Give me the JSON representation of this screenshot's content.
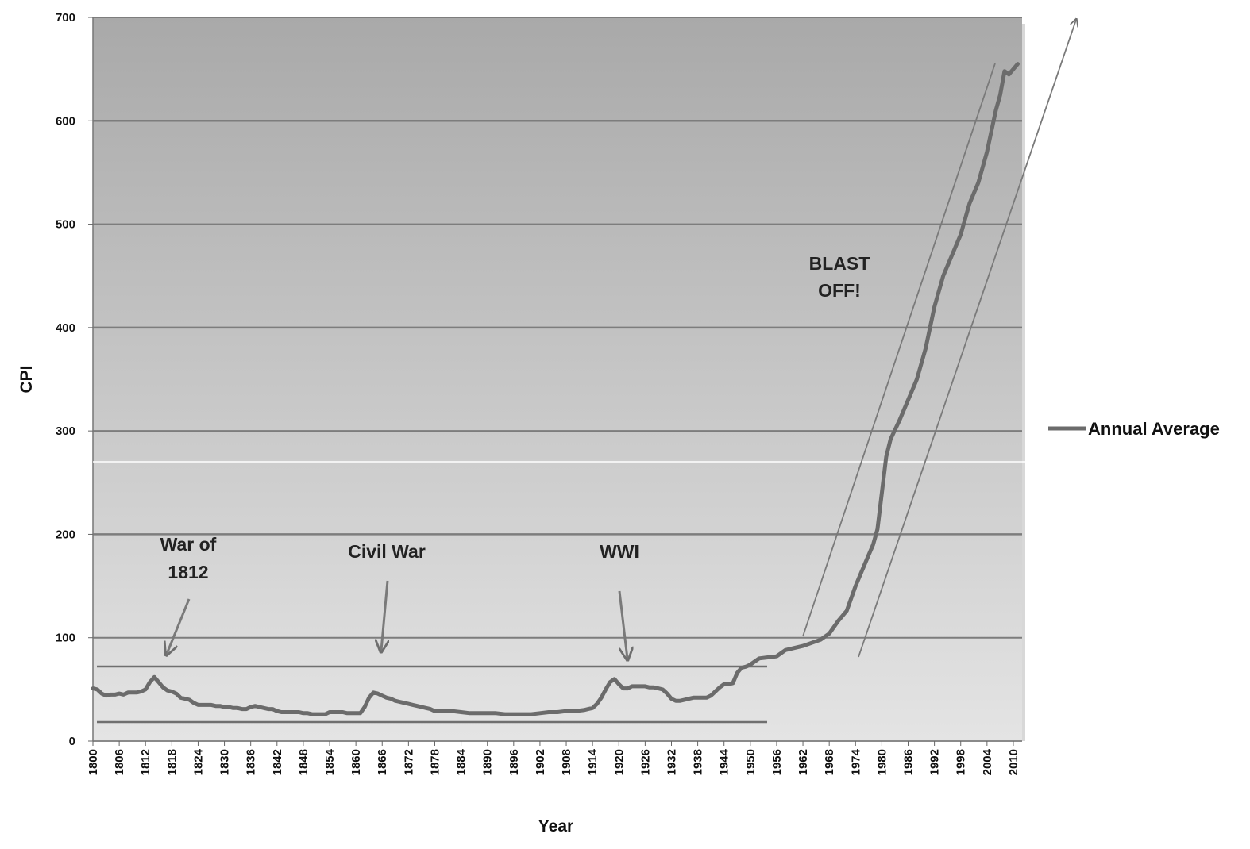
{
  "chart_data": {
    "type": "line",
    "title": "",
    "xlabel": "Year",
    "ylabel": "CPI",
    "xlim": [
      1800,
      2012
    ],
    "ylim": [
      0,
      700
    ],
    "yticks": [
      0,
      100,
      200,
      300,
      400,
      500,
      600,
      700
    ],
    "xticks": [
      1800,
      1806,
      1812,
      1818,
      1824,
      1830,
      1836,
      1842,
      1848,
      1854,
      1860,
      1866,
      1872,
      1878,
      1884,
      1890,
      1896,
      1902,
      1908,
      1914,
      1920,
      1926,
      1932,
      1938,
      1944,
      1950,
      1956,
      1962,
      1968,
      1974,
      1980,
      1986,
      1992,
      1998,
      2004,
      2010
    ],
    "grid": true,
    "legend_position": "right",
    "series": [
      {
        "name": "Annual Average",
        "color": "#6b6b6b",
        "x": [
          1800,
          1801,
          1802,
          1803,
          1804,
          1805,
          1806,
          1807,
          1808,
          1809,
          1810,
          1811,
          1812,
          1813,
          1814,
          1815,
          1816,
          1817,
          1818,
          1819,
          1820,
          1821,
          1822,
          1823,
          1824,
          1825,
          1826,
          1827,
          1828,
          1829,
          1830,
          1831,
          1832,
          1833,
          1834,
          1835,
          1836,
          1837,
          1838,
          1839,
          1840,
          1841,
          1842,
          1843,
          1844,
          1845,
          1846,
          1847,
          1848,
          1849,
          1850,
          1851,
          1852,
          1853,
          1854,
          1855,
          1856,
          1857,
          1858,
          1859,
          1860,
          1861,
          1862,
          1863,
          1864,
          1865,
          1866,
          1867,
          1868,
          1869,
          1870,
          1871,
          1872,
          1873,
          1874,
          1875,
          1876,
          1877,
          1878,
          1879,
          1880,
          1882,
          1884,
          1886,
          1888,
          1890,
          1892,
          1894,
          1896,
          1898,
          1900,
          1902,
          1904,
          1906,
          1908,
          1910,
          1912,
          1913,
          1914,
          1915,
          1916,
          1917,
          1918,
          1919,
          1920,
          1921,
          1922,
          1923,
          1924,
          1925,
          1926,
          1927,
          1928,
          1929,
          1930,
          1931,
          1932,
          1933,
          1934,
          1935,
          1936,
          1937,
          1938,
          1939,
          1940,
          1941,
          1942,
          1943,
          1944,
          1945,
          1946,
          1947,
          1948,
          1949,
          1950,
          1952,
          1954,
          1956,
          1958,
          1960,
          1962,
          1964,
          1966,
          1968,
          1970,
          1972,
          1974,
          1975,
          1976,
          1977,
          1978,
          1979,
          1980,
          1981,
          1982,
          1984,
          1986,
          1988,
          1990,
          1992,
          1994,
          1996,
          1998,
          2000,
          2002,
          2004,
          2006,
          2007,
          2008,
          2009,
          2010,
          2011
        ],
        "values": [
          51,
          50,
          46,
          44,
          45,
          45,
          46,
          45,
          47,
          47,
          47,
          48,
          50,
          57,
          62,
          57,
          52,
          49,
          48,
          46,
          42,
          41,
          40,
          37,
          35,
          35,
          35,
          35,
          34,
          34,
          33,
          33,
          32,
          32,
          31,
          31,
          33,
          34,
          33,
          32,
          31,
          31,
          29,
          28,
          28,
          28,
          28,
          28,
          27,
          27,
          26,
          26,
          26,
          26,
          28,
          28,
          28,
          28,
          27,
          27,
          27,
          27,
          33,
          42,
          47,
          46,
          44,
          42,
          41,
          39,
          38,
          37,
          36,
          35,
          34,
          33,
          32,
          31,
          29,
          29,
          29,
          29,
          28,
          27,
          27,
          27,
          27,
          26,
          26,
          26,
          26,
          27,
          28,
          28,
          29,
          29,
          30,
          31,
          32,
          36,
          42,
          50,
          57,
          60,
          55,
          51,
          51,
          53,
          53,
          53,
          53,
          52,
          52,
          51,
          50,
          46,
          41,
          39,
          39,
          40,
          41,
          42,
          42,
          42,
          42,
          44,
          48,
          52,
          55,
          55,
          56,
          66,
          71,
          72,
          74,
          80,
          81,
          82,
          88,
          90,
          92,
          95,
          98,
          104,
          116,
          126,
          150,
          160,
          170,
          180,
          190,
          205,
          240,
          275,
          292,
          310,
          330,
          350,
          380,
          420,
          450,
          470,
          490,
          520,
          540,
          570,
          610,
          625,
          648,
          645,
          650,
          655
        ]
      }
    ],
    "annotations": [
      {
        "text": "War of",
        "text2": "1812",
        "year": 1813
      },
      {
        "text": "Civil War",
        "year": 1864
      },
      {
        "text": "WWI",
        "year": 1918
      },
      {
        "text": "BLAST",
        "text2": "OFF!",
        "year": 1963
      }
    ]
  }
}
